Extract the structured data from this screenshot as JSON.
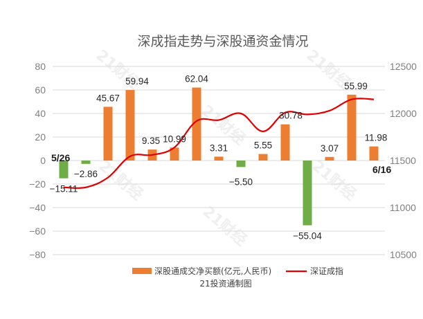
{
  "chart_data": {
    "type": "bar",
    "title": "深成指走势与深股通资金情况",
    "credit": "21投资通制图",
    "watermark": "21财经",
    "y_left": {
      "ticks": [
        80,
        60,
        40,
        20,
        0,
        -20,
        -40,
        -60,
        -80
      ],
      "ylim": [
        -80,
        80
      ]
    },
    "y_right": {
      "ticks": [
        12500,
        12000,
        11500,
        11000,
        10500
      ],
      "ylim": [
        10500,
        12500
      ]
    },
    "start_label": "5/26",
    "end_label": "6/16",
    "series": [
      {
        "name": "深股通成交净买额(亿元,人民币)",
        "type": "bar",
        "axis": "left",
        "values": [
          -15.11,
          -2.86,
          45.67,
          59.94,
          9.35,
          10.99,
          62.04,
          3.31,
          -5.5,
          5.55,
          30.78,
          -55.04,
          3.07,
          55.99,
          11.98
        ],
        "labels": [
          "−15.11",
          "−2.86",
          "45.67",
          "59.94",
          "9.35",
          "10.99",
          "62.04",
          "3.31",
          "−5.50",
          "5.55",
          "30.78",
          "−55.04",
          "3.07",
          "55.99",
          "11.98"
        ]
      },
      {
        "name": "深证成指",
        "type": "line",
        "axis": "right",
        "values": [
          11215,
          11215,
          11320,
          11545,
          11560,
          11640,
          11920,
          11930,
          12000,
          11810,
          12010,
          11990,
          12030,
          12150,
          12150
        ]
      }
    ],
    "colors": {
      "positive": "#ed7d31",
      "negative": "#70ad47",
      "line": "#e00000",
      "grid": "#d9d9d9"
    },
    "grid": true,
    "legend_position": "bottom"
  }
}
